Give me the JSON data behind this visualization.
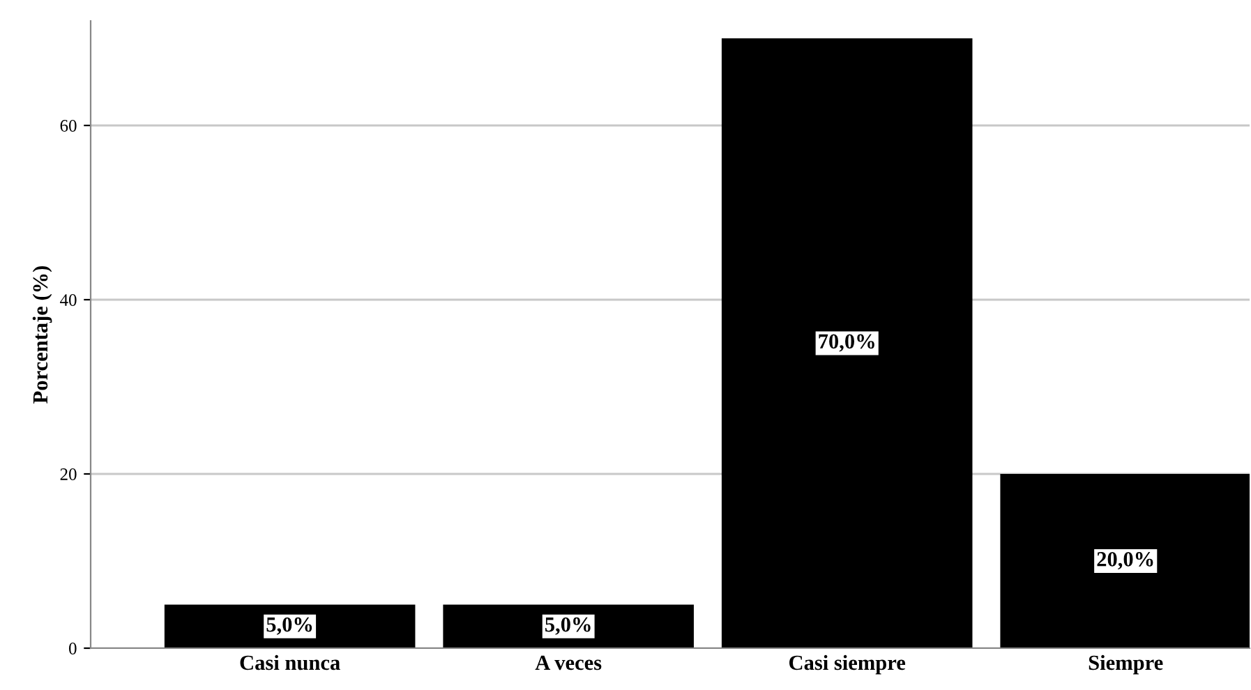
{
  "chart_data": {
    "type": "bar",
    "ylabel": "Porcentaje (%)",
    "categories": [
      "Casi nunca",
      "A veces",
      "Casi siempre",
      "Siempre"
    ],
    "values": [
      5,
      5,
      70,
      20
    ],
    "color": "#000000",
    "value_labels": [
      "5,0%",
      "5,0%",
      "70,0%",
      "20,0%"
    ],
    "ylim": [
      0,
      72
    ],
    "yticks": [
      0,
      20,
      40,
      60
    ],
    "grid": "y",
    "legend": false
  }
}
